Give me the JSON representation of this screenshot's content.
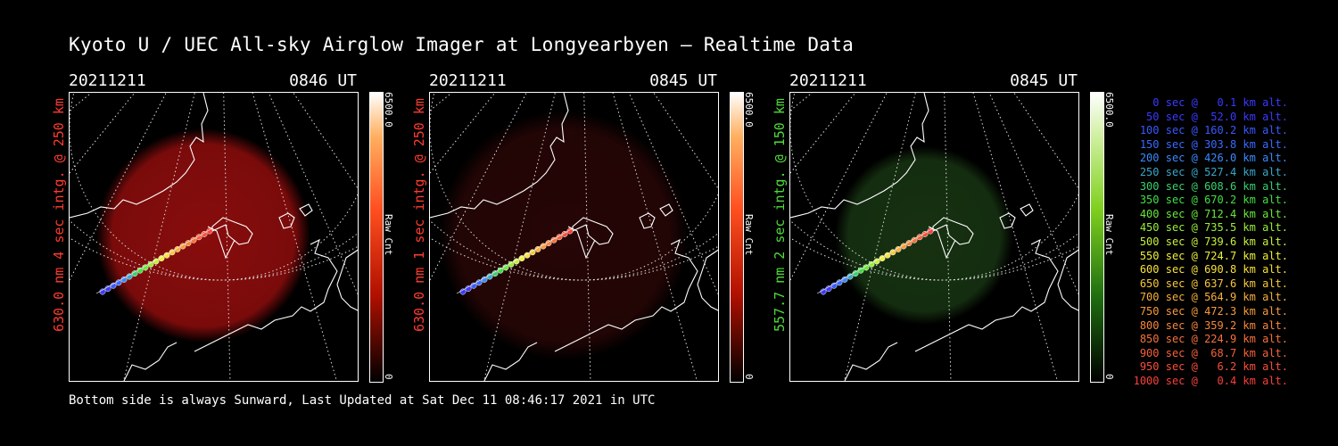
{
  "title": "Kyoto U / UEC All-sky Airglow Imager at Longyearbyen — Realtime Data",
  "footer": "Bottom side is always Sunward, Last Updated at Sat Dec 11 08:46:17 2021 in UTC",
  "panels": [
    {
      "date": "20211211",
      "time": "0846 UT",
      "side_label": "630.0 nm 4 sec intg. @ 250 km",
      "cbar_max": "6500.0",
      "cbar_min": "0",
      "cbar_unit": "Raw Cnt",
      "color": "#ff3b30",
      "glow": "#8f0d0d"
    },
    {
      "date": "20211211",
      "time": "0845 UT",
      "side_label": "630.0 nm 1 sec intg. @ 250 km",
      "cbar_max": "6500.0",
      "cbar_min": "0",
      "cbar_unit": "Raw Cnt",
      "color": "#ff3b30",
      "glow": "#2a0606"
    },
    {
      "date": "20211211",
      "time": "0845 UT",
      "side_label": "557.7 nm 2 sec intg. @ 150 km",
      "cbar_max": "6500.0",
      "cbar_min": "0",
      "cbar_unit": "Raw Cnt",
      "color": "#4fdb3a",
      "glow": "#1a3a14"
    }
  ],
  "legend": [
    {
      "text": "0 sec @   0.1 km alt.",
      "color": "#3a3aff"
    },
    {
      "text": "50 sec @  52.0 km alt.",
      "color": "#3a3aff"
    },
    {
      "text": "100 sec @ 160.2 km alt.",
      "color": "#3a5aff"
    },
    {
      "text": "150 sec @ 303.8 km alt.",
      "color": "#3a6aff"
    },
    {
      "text": "200 sec @ 426.0 km alt.",
      "color": "#3a8aff"
    },
    {
      "text": "250 sec @ 527.4 km alt.",
      "color": "#3aa8c8"
    },
    {
      "text": "300 sec @ 608.6 km alt.",
      "color": "#3ad070"
    },
    {
      "text": "350 sec @ 670.2 km alt.",
      "color": "#40e040"
    },
    {
      "text": "400 sec @ 712.4 km alt.",
      "color": "#6ae83a"
    },
    {
      "text": "450 sec @ 735.5 km alt.",
      "color": "#9aee3a"
    },
    {
      "text": "500 sec @ 739.6 km alt.",
      "color": "#c8f03a"
    },
    {
      "text": "550 sec @ 724.7 km alt.",
      "color": "#eef03a"
    },
    {
      "text": "600 sec @ 690.8 km alt.",
      "color": "#f8e03a"
    },
    {
      "text": "650 sec @ 637.6 km alt.",
      "color": "#f8c83a"
    },
    {
      "text": "700 sec @ 564.9 km alt.",
      "color": "#f8b03a"
    },
    {
      "text": "750 sec @ 472.3 km alt.",
      "color": "#f89a3a"
    },
    {
      "text": "800 sec @ 359.2 km alt.",
      "color": "#f8863a"
    },
    {
      "text": "850 sec @ 224.9 km alt.",
      "color": "#f8723a"
    },
    {
      "text": "900 sec @  68.7 km alt.",
      "color": "#f8603a"
    },
    {
      "text": "950 sec @   6.2 km alt.",
      "color": "#f8503a"
    },
    {
      "text": "1000 sec @   0.4 km alt.",
      "color": "#f8403a"
    }
  ]
}
